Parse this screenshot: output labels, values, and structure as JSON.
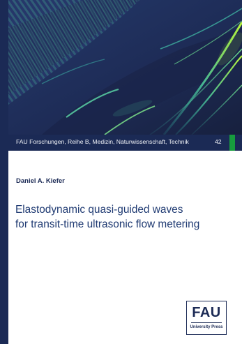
{
  "series": {
    "text": "FAU Forschungen, Reihe B, Medizin, Naturwissenschaft, Technik",
    "number": "42"
  },
  "author": "Daniel A. Kiefer",
  "title": {
    "line1": "Elastodynamic quasi-guided waves",
    "line2": "for transit-time ultrasonic flow metering"
  },
  "publisher": {
    "wordmark": "FAU",
    "subtitle": "University Press"
  },
  "colors": {
    "navy": "#1b2a55",
    "title_blue": "#1f3a72",
    "accent_green": "#179c3e",
    "wave_bright": "#b7f53a",
    "wave_teal": "#2fa5a0"
  },
  "icons": {
    "publisher_logo": "fau-university-press-logo"
  }
}
